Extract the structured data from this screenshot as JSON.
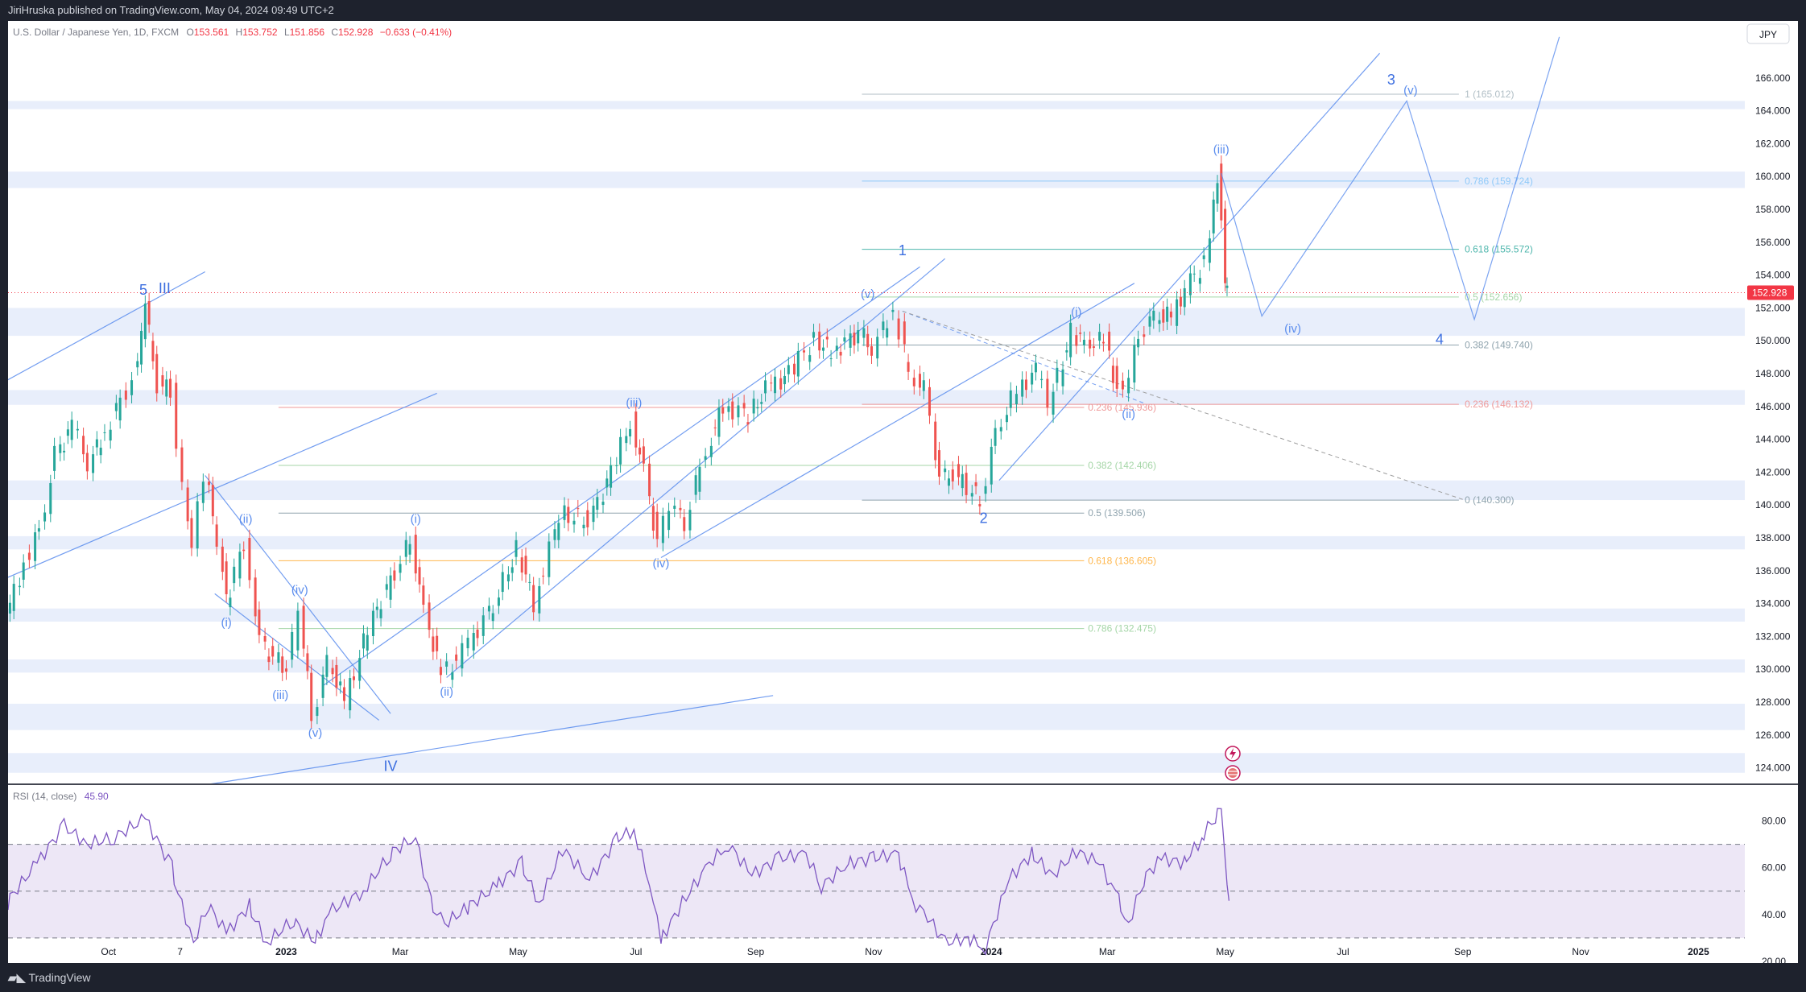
{
  "header": {
    "published": "JiriHruska published on TradingView.com, May 04, 2024 09:49 UTC+2"
  },
  "footer": {
    "brand": "TradingView"
  },
  "legend": {
    "symbol": "U.S. Dollar / Japanese Yen, 1D, FXCM",
    "o_label": "O",
    "o_value": "153.561",
    "h_label": "H",
    "h_value": "153.752",
    "l_label": "L",
    "l_value": "151.856",
    "c_label": "C",
    "c_value": "152.928",
    "change": "−0.633 (−0.41%)",
    "currency": "JPY",
    "last_price": "152.928"
  },
  "rsi_legend": {
    "label": "RSI (14, close)",
    "value": "45.90"
  },
  "colors": {
    "bg": "#ffffff",
    "up": "#26a69a",
    "down": "#ef5350",
    "wave": "#5b8dee",
    "zone": "#e8eefb",
    "rsi_line": "#7e57c2",
    "rsi_band": "#ede7f6",
    "last_price_bg": "#f23645"
  },
  "chart_data": [
    {
      "type": "candlestick",
      "symbol": "USDJPY",
      "interval": "1D",
      "y_scale": "linear",
      "ylim": [
        123,
        168
      ],
      "y_ticks": [
        "124.000",
        "126.000",
        "128.000",
        "130.000",
        "132.000",
        "134.000",
        "136.000",
        "138.000",
        "140.000",
        "142.000",
        "144.000",
        "146.000",
        "148.000",
        "150.000",
        "152.000",
        "154.000",
        "156.000",
        "158.000",
        "160.000",
        "162.000",
        "164.000",
        "166.000"
      ],
      "x_labels": [
        "Oct",
        "7",
        "2023",
        "Mar",
        "May",
        "Jul",
        "Sep",
        "Nov",
        "2024",
        "Mar",
        "May",
        "Jul",
        "Sep",
        "Nov",
        "2025"
      ],
      "price_path": [
        {
          "x": "2022-08-10",
          "y": 133.0
        },
        {
          "x": "2022-08-20",
          "y": 136.5
        },
        {
          "x": "2022-08-28",
          "y": 138.5
        },
        {
          "x": "2022-09-05",
          "y": 143.0
        },
        {
          "x": "2022-09-14",
          "y": 144.8
        },
        {
          "x": "2022-09-22",
          "y": 142.5
        },
        {
          "x": "2022-10-01",
          "y": 144.5
        },
        {
          "x": "2022-10-12",
          "y": 147.0
        },
        {
          "x": "2022-10-20",
          "y": 150.0
        },
        {
          "x": "2022-10-21",
          "y": 151.95
        },
        {
          "x": "2022-10-28",
          "y": 147.3
        },
        {
          "x": "2022-11-04",
          "y": 147.0
        },
        {
          "x": "2022-11-10",
          "y": 141.0
        },
        {
          "x": "2022-11-15",
          "y": 137.7
        },
        {
          "x": "2022-11-21",
          "y": 142.0
        },
        {
          "x": "2022-11-28",
          "y": 138.0
        },
        {
          "x": "2022-12-02",
          "y": 134.0
        },
        {
          "x": "2022-12-12",
          "y": 137.8
        },
        {
          "x": "2022-12-20",
          "y": 131.5
        },
        {
          "x": "2023-01-03",
          "y": 130.0
        },
        {
          "x": "2023-01-09",
          "y": 133.5
        },
        {
          "x": "2023-01-16",
          "y": 127.2
        },
        {
          "x": "2023-01-24",
          "y": 130.5
        },
        {
          "x": "2023-02-02",
          "y": 128.1
        },
        {
          "x": "2023-02-14",
          "y": 132.5
        },
        {
          "x": "2023-02-28",
          "y": 136.0
        },
        {
          "x": "2023-03-08",
          "y": 137.9
        },
        {
          "x": "2023-03-15",
          "y": 133.5
        },
        {
          "x": "2023-03-24",
          "y": 129.6
        },
        {
          "x": "2023-04-04",
          "y": 131.0
        },
        {
          "x": "2023-04-20",
          "y": 134.0
        },
        {
          "x": "2023-05-02",
          "y": 137.3
        },
        {
          "x": "2023-05-11",
          "y": 134.0
        },
        {
          "x": "2023-05-24",
          "y": 139.5
        },
        {
          "x": "2023-06-08",
          "y": 139.0
        },
        {
          "x": "2023-06-20",
          "y": 142.0
        },
        {
          "x": "2023-06-30",
          "y": 145.1
        },
        {
          "x": "2023-07-07",
          "y": 142.0
        },
        {
          "x": "2023-07-14",
          "y": 137.5
        },
        {
          "x": "2023-07-20",
          "y": 140.0
        },
        {
          "x": "2023-07-28",
          "y": 139.0
        },
        {
          "x": "2023-08-08",
          "y": 143.5
        },
        {
          "x": "2023-08-17",
          "y": 146.0
        },
        {
          "x": "2023-08-30",
          "y": 145.5
        },
        {
          "x": "2023-09-08",
          "y": 147.0
        },
        {
          "x": "2023-09-20",
          "y": 148.0
        },
        {
          "x": "2023-10-03",
          "y": 150.1
        },
        {
          "x": "2023-10-12",
          "y": 149.3
        },
        {
          "x": "2023-10-26",
          "y": 150.5
        },
        {
          "x": "2023-11-02",
          "y": 149.5
        },
        {
          "x": "2023-11-13",
          "y": 151.9
        },
        {
          "x": "2023-11-21",
          "y": 148.0
        },
        {
          "x": "2023-11-29",
          "y": 147.0
        },
        {
          "x": "2023-12-07",
          "y": 141.5
        },
        {
          "x": "2023-12-14",
          "y": 141.9
        },
        {
          "x": "2023-12-28",
          "y": 140.3
        },
        {
          "x": "2024-01-05",
          "y": 144.5
        },
        {
          "x": "2024-01-16",
          "y": 147.0
        },
        {
          "x": "2024-01-26",
          "y": 148.2
        },
        {
          "x": "2024-02-01",
          "y": 146.0
        },
        {
          "x": "2024-02-13",
          "y": 150.5
        },
        {
          "x": "2024-02-20",
          "y": 149.8
        },
        {
          "x": "2024-03-01",
          "y": 150.0
        },
        {
          "x": "2024-03-08",
          "y": 147.0
        },
        {
          "x": "2024-03-11",
          "y": 146.5
        },
        {
          "x": "2024-03-19",
          "y": 150.5
        },
        {
          "x": "2024-03-27",
          "y": 151.5
        },
        {
          "x": "2024-04-05",
          "y": 151.5
        },
        {
          "x": "2024-04-12",
          "y": 153.2
        },
        {
          "x": "2024-04-22",
          "y": 154.8
        },
        {
          "x": "2024-04-26",
          "y": 158.0
        },
        {
          "x": "2024-04-29",
          "y": 160.2
        },
        {
          "x": "2024-04-30",
          "y": 157.5
        },
        {
          "x": "2024-05-02",
          "y": 153.0
        },
        {
          "x": "2024-05-03",
          "y": 152.9
        }
      ],
      "last_candle": {
        "x": "2024-05-03",
        "open": 153.561,
        "high": 153.752,
        "low": 151.856,
        "close": 152.928,
        "change": -0.633,
        "change_pct": -0.41
      },
      "wave_labels": [
        {
          "x": "2022-10-19",
          "y": 152.8,
          "text": "5"
        },
        {
          "x": "2022-10-30",
          "y": 152.9,
          "text": "III"
        },
        {
          "x": "2022-12-01",
          "y": 132.6,
          "text": "(i)"
        },
        {
          "x": "2022-12-11",
          "y": 138.9,
          "text": "(ii)"
        },
        {
          "x": "2022-12-29",
          "y": 128.2,
          "text": "(iii)"
        },
        {
          "x": "2023-01-08",
          "y": 134.6,
          "text": "(iv)"
        },
        {
          "x": "2023-01-16",
          "y": 125.9,
          "text": "(v)"
        },
        {
          "x": "2023-02-24",
          "y": 123.8,
          "text": "IV"
        },
        {
          "x": "2023-03-09",
          "y": 138.9,
          "text": "(i)"
        },
        {
          "x": "2023-03-25",
          "y": 128.4,
          "text": "(ii)"
        },
        {
          "x": "2023-06-30",
          "y": 146.0,
          "text": "(iii)"
        },
        {
          "x": "2023-07-14",
          "y": 136.2,
          "text": "(iv)"
        },
        {
          "x": "2023-10-29",
          "y": 152.6,
          "text": "(v)"
        },
        {
          "x": "2023-11-16",
          "y": 155.2,
          "text": "1"
        },
        {
          "x": "2023-12-28",
          "y": 138.9,
          "text": "2"
        },
        {
          "x": "2024-02-14",
          "y": 151.5,
          "text": "(i)"
        },
        {
          "x": "2024-03-12",
          "y": 145.3,
          "text": "(ii)"
        },
        {
          "x": "2024-04-29",
          "y": 161.4,
          "text": "(iii)"
        },
        {
          "x": "2024-06-05",
          "y": 150.5,
          "text": "(iv)"
        },
        {
          "x": "2024-07-26",
          "y": 165.6,
          "text": "3"
        },
        {
          "x": "2024-08-05",
          "y": 165.0,
          "text": "(v)"
        },
        {
          "x": "2024-08-20",
          "y": 149.8,
          "text": "4"
        }
      ],
      "projection_path": [
        {
          "x": "2024-04-29",
          "y": 160.2
        },
        {
          "x": "2024-05-20",
          "y": 151.5
        },
        {
          "x": "2024-08-03",
          "y": 164.6
        },
        {
          "x": "2024-09-07",
          "y": 151.3
        },
        {
          "x": "2024-10-21",
          "y": 168.5
        }
      ],
      "fib_retracement_2023": [
        {
          "level": "0.236",
          "price": "145.936",
          "y": 145.94,
          "color": "#ef9a9a"
        },
        {
          "level": "0.382",
          "price": "142.406",
          "y": 142.41,
          "color": "#a5d6a7"
        },
        {
          "level": "0.5",
          "price": "139.506",
          "y": 139.51,
          "color": "#90a4ae"
        },
        {
          "level": "0.618",
          "price": "136.605",
          "y": 136.61,
          "color": "#ffb74d"
        },
        {
          "level": "0.786",
          "price": "132.475",
          "y": 132.48,
          "color": "#a5d6a7"
        }
      ],
      "fib_extension_2024": [
        {
          "level": "1",
          "price": "165.012",
          "y": 165.01,
          "color": "#b0bec5"
        },
        {
          "level": "0.786",
          "price": "159.724",
          "y": 159.72,
          "color": "#90caf9"
        },
        {
          "level": "0.618",
          "price": "155.572",
          "y": 155.57,
          "color": "#4db6ac"
        },
        {
          "level": "0.5",
          "price": "152.656",
          "y": 152.66,
          "color": "#a5d6a7"
        },
        {
          "level": "0.382",
          "price": "149.740",
          "y": 149.74,
          "color": "#90a4ae"
        },
        {
          "level": "0.236",
          "price": "146.132",
          "y": 146.13,
          "color": "#ef9a9a"
        },
        {
          "level": "0",
          "price": "140.300",
          "y": 140.3,
          "color": "#90a4ae"
        }
      ],
      "zones": [
        [
          164.1,
          164.6
        ],
        [
          159.3,
          160.3
        ],
        [
          150.3,
          152.0
        ],
        [
          146.1,
          147.0
        ],
        [
          140.3,
          141.5
        ],
        [
          137.3,
          138.1
        ],
        [
          132.9,
          133.7
        ],
        [
          129.8,
          130.6
        ],
        [
          126.3,
          127.9
        ],
        [
          123.7,
          124.9
        ]
      ]
    },
    {
      "type": "line",
      "title": "RSI (14, close)",
      "ylim": [
        20,
        95
      ],
      "y_ticks": [
        "20.00",
        "40.00",
        "60.00",
        "80.00"
      ],
      "band": [
        30,
        70
      ],
      "midline": 50,
      "points": [
        {
          "x": "2022-08-10",
          "y": 45
        },
        {
          "x": "2022-08-25",
          "y": 62
        },
        {
          "x": "2022-09-08",
          "y": 78
        },
        {
          "x": "2022-09-20",
          "y": 70
        },
        {
          "x": "2022-10-04",
          "y": 73
        },
        {
          "x": "2022-10-20",
          "y": 81
        },
        {
          "x": "2022-11-03",
          "y": 60
        },
        {
          "x": "2022-11-14",
          "y": 28
        },
        {
          "x": "2022-11-22",
          "y": 45
        },
        {
          "x": "2022-12-01",
          "y": 32
        },
        {
          "x": "2022-12-13",
          "y": 44
        },
        {
          "x": "2022-12-22",
          "y": 28
        },
        {
          "x": "2023-01-05",
          "y": 38
        },
        {
          "x": "2023-01-16",
          "y": 28
        },
        {
          "x": "2023-01-25",
          "y": 42
        },
        {
          "x": "2023-02-10",
          "y": 50
        },
        {
          "x": "2023-02-24",
          "y": 66
        },
        {
          "x": "2023-03-09",
          "y": 73
        },
        {
          "x": "2023-03-17",
          "y": 45
        },
        {
          "x": "2023-03-24",
          "y": 36
        },
        {
          "x": "2023-04-05",
          "y": 43
        },
        {
          "x": "2023-04-20",
          "y": 52
        },
        {
          "x": "2023-05-03",
          "y": 62
        },
        {
          "x": "2023-05-12",
          "y": 45
        },
        {
          "x": "2023-05-24",
          "y": 68
        },
        {
          "x": "2023-06-07",
          "y": 55
        },
        {
          "x": "2023-06-21",
          "y": 72
        },
        {
          "x": "2023-06-30",
          "y": 76
        },
        {
          "x": "2023-07-10",
          "y": 48
        },
        {
          "x": "2023-07-14",
          "y": 28
        },
        {
          "x": "2023-07-25",
          "y": 45
        },
        {
          "x": "2023-08-08",
          "y": 62
        },
        {
          "x": "2023-08-18",
          "y": 70
        },
        {
          "x": "2023-08-30",
          "y": 57
        },
        {
          "x": "2023-09-13",
          "y": 64
        },
        {
          "x": "2023-09-27",
          "y": 66
        },
        {
          "x": "2023-10-05",
          "y": 52
        },
        {
          "x": "2023-10-19",
          "y": 62
        },
        {
          "x": "2023-11-01",
          "y": 64
        },
        {
          "x": "2023-11-14",
          "y": 66
        },
        {
          "x": "2023-11-23",
          "y": 44
        },
        {
          "x": "2023-12-01",
          "y": 38
        },
        {
          "x": "2023-12-08",
          "y": 28
        },
        {
          "x": "2023-12-20",
          "y": 30
        },
        {
          "x": "2023-12-29",
          "y": 26
        },
        {
          "x": "2024-01-10",
          "y": 55
        },
        {
          "x": "2024-01-22",
          "y": 66
        },
        {
          "x": "2024-02-02",
          "y": 57
        },
        {
          "x": "2024-02-14",
          "y": 67
        },
        {
          "x": "2024-02-26",
          "y": 62
        },
        {
          "x": "2024-03-07",
          "y": 46
        },
        {
          "x": "2024-03-12",
          "y": 36
        },
        {
          "x": "2024-03-20",
          "y": 55
        },
        {
          "x": "2024-03-29",
          "y": 64
        },
        {
          "x": "2024-04-10",
          "y": 62
        },
        {
          "x": "2024-04-19",
          "y": 72
        },
        {
          "x": "2024-04-26",
          "y": 82
        },
        {
          "x": "2024-04-29",
          "y": 86
        },
        {
          "x": "2024-04-30",
          "y": 72
        },
        {
          "x": "2024-05-02",
          "y": 52
        },
        {
          "x": "2024-05-03",
          "y": 45.9
        }
      ]
    }
  ]
}
